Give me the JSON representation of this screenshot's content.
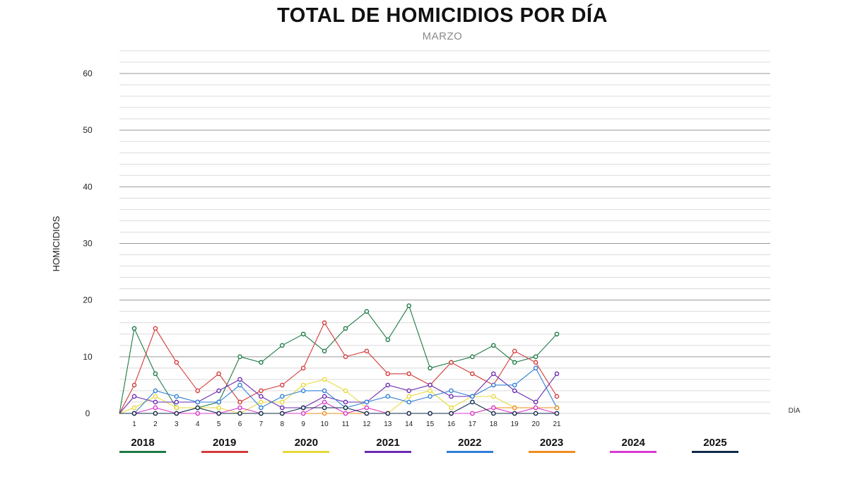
{
  "title": "TOTAL DE HOMICIDIOS POR DÍA",
  "subtitle": "MARZO",
  "chart_data": {
    "type": "line",
    "title": "TOTAL DE HOMICIDIOS POR DÍA",
    "subtitle": "MARZO",
    "xlabel": "DÍA",
    "ylabel": "HOMICIDIOS",
    "x": [
      1,
      2,
      3,
      4,
      5,
      6,
      7,
      8,
      9,
      10,
      11,
      12,
      13,
      14,
      15,
      16,
      17,
      18,
      19,
      20,
      21
    ],
    "ylim": [
      0,
      60
    ],
    "yticks": [
      0,
      10,
      20,
      30,
      40,
      50,
      60
    ],
    "grid": true,
    "legend": "bottom",
    "series": [
      {
        "name": "2018",
        "color": "#1e7a44",
        "values": [
          15,
          7,
          1,
          1,
          2,
          10,
          9,
          12,
          14,
          11,
          15,
          18,
          13,
          19,
          8,
          9,
          10,
          12,
          9,
          10,
          14
        ]
      },
      {
        "name": "2019",
        "color": "#d43a3a",
        "values": [
          5,
          15,
          9,
          4,
          7,
          2,
          4,
          5,
          8,
          16,
          10,
          11,
          7,
          7,
          5,
          9,
          7,
          5,
          11,
          9,
          3
        ]
      },
      {
        "name": "2020",
        "color": "#e8d93a",
        "values": [
          1,
          3,
          1,
          1,
          1,
          0,
          2,
          2,
          5,
          6,
          4,
          1,
          0,
          3,
          4,
          1,
          3,
          3,
          1,
          1,
          1
        ]
      },
      {
        "name": "2021",
        "color": "#6a2bb0",
        "values": [
          3,
          2,
          2,
          2,
          4,
          6,
          3,
          1,
          1,
          3,
          2,
          2,
          5,
          4,
          5,
          3,
          3,
          7,
          4,
          2,
          7
        ]
      },
      {
        "name": "2022",
        "color": "#2f7fd6",
        "values": [
          0,
          4,
          3,
          2,
          2,
          5,
          1,
          3,
          4,
          4,
          1,
          2,
          3,
          2,
          3,
          4,
          3,
          5,
          5,
          8,
          1
        ]
      },
      {
        "name": "2023",
        "color": "#f08c1e",
        "values": [
          0,
          0,
          0,
          0,
          0,
          0,
          0,
          0,
          0,
          0,
          0,
          0,
          0,
          0,
          0,
          0,
          0,
          1,
          1,
          1,
          1
        ]
      },
      {
        "name": "2024",
        "color": "#d93ad0",
        "values": [
          0,
          1,
          0,
          0,
          0,
          1,
          0,
          0,
          0,
          2,
          0,
          1,
          0,
          0,
          0,
          0,
          0,
          1,
          0,
          1,
          0
        ]
      },
      {
        "name": "2025",
        "color": "#0f2a4a",
        "values": [
          0,
          0,
          0,
          1,
          0,
          0,
          0,
          0,
          1,
          1,
          1,
          0,
          0,
          0,
          0,
          0,
          2,
          0,
          0,
          0,
          0
        ]
      }
    ]
  }
}
